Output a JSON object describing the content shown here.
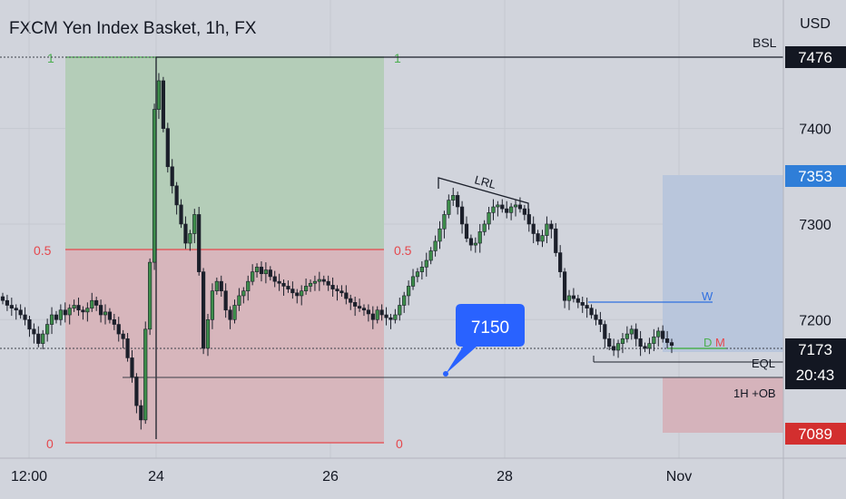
{
  "chart_data": {
    "type": "candlestick",
    "title": "FXCM Yen Index Basket, 1h, FX",
    "currency": "USD",
    "x_ticks": [
      "12:00",
      "24",
      "26",
      "28",
      "Nov"
    ],
    "y_ticks": [
      "7200",
      "7300",
      "7400"
    ],
    "ylim": [
      7055,
      7525
    ],
    "fib_levels": [
      {
        "level": "1",
        "price": 7476
      },
      {
        "level": "0.5",
        "price": 7283
      },
      {
        "level": "0",
        "price": 7089
      }
    ],
    "price_badges": {
      "bsl": {
        "label": "BSL",
        "value": "7476"
      },
      "upper": {
        "value": "7353"
      },
      "current": {
        "value": "7173",
        "countdown": "20:43"
      },
      "lower": {
        "value": "7089"
      }
    },
    "annotations": {
      "callout": "7150",
      "lrl": "LRL",
      "eql": "EQL",
      "ob": "1H +OB",
      "w": "W",
      "d": "D",
      "m": "M"
    },
    "colors": {
      "background": "#d1d4dc",
      "up": "#3d8d4a",
      "down": "#1b1f2a",
      "fib_red": "#e5484d",
      "fib_green": "#4caf50",
      "callout": "#2962ff",
      "w_line": "#2f6fe0"
    },
    "candles_close": [
      7220,
      7215,
      7212,
      7210,
      7205,
      7200,
      7190,
      7185,
      7175,
      7185,
      7195,
      7205,
      7200,
      7210,
      7205,
      7212,
      7215,
      7210,
      7208,
      7212,
      7220,
      7215,
      7205,
      7208,
      7200,
      7195,
      7185,
      7180,
      7160,
      7140,
      7110,
      7095,
      7190,
      7260,
      7420,
      7450,
      7400,
      7360,
      7340,
      7320,
      7300,
      7280,
      7290,
      7310,
      7250,
      7170,
      7200,
      7230,
      7240,
      7230,
      7210,
      7200,
      7215,
      7225,
      7230,
      7240,
      7250,
      7255,
      7248,
      7252,
      7245,
      7240,
      7238,
      7235,
      7232,
      7228,
      7225,
      7230,
      7235,
      7238,
      7240,
      7242,
      7240,
      7236,
      7232,
      7230,
      7228,
      7222,
      7218,
      7214,
      7212,
      7210,
      7206,
      7200,
      7210,
      7205,
      7202,
      7200,
      7205,
      7215,
      7225,
      7235,
      7245,
      7250,
      7255,
      7262,
      7272,
      7282,
      7295,
      7310,
      7325,
      7330,
      7318,
      7300,
      7285,
      7278,
      7280,
      7292,
      7300,
      7312,
      7318,
      7320,
      7316,
      7312,
      7318,
      7320,
      7316,
      7310,
      7300,
      7290,
      7282,
      7288,
      7300,
      7295,
      7270,
      7250,
      7220,
      7225,
      7222,
      7218,
      7215,
      7212,
      7205,
      7200,
      7195,
      7180,
      7172,
      7168,
      7175,
      7180,
      7185,
      7190,
      7180,
      7172,
      7170,
      7175,
      7182,
      7188,
      7180,
      7176,
      7173
    ]
  }
}
